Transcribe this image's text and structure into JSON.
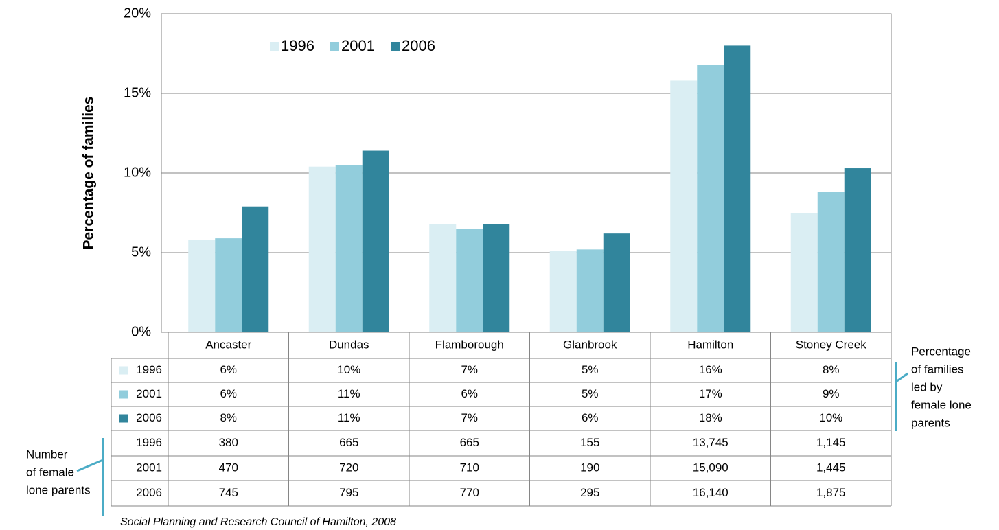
{
  "chart_data": {
    "type": "bar",
    "y_axis_label": "Percentage of families",
    "categories": [
      "Ancaster",
      "Dundas",
      "Flamborough",
      "Glanbrook",
      "Hamilton",
      "Stoney Creek"
    ],
    "series": [
      {
        "name": "1996",
        "color": "#daeef3",
        "values": [
          5.8,
          10.4,
          6.8,
          5.1,
          15.8,
          7.5
        ],
        "value_labels": [
          "6%",
          "10%",
          "7%",
          "5%",
          "16%",
          "8%"
        ]
      },
      {
        "name": "2001",
        "color": "#92cddc",
        "values": [
          5.9,
          10.5,
          6.5,
          5.2,
          16.8,
          8.8
        ],
        "value_labels": [
          "6%",
          "11%",
          "6%",
          "5%",
          "17%",
          "9%"
        ]
      },
      {
        "name": "2006",
        "color": "#31859c",
        "values": [
          7.9,
          11.4,
          6.8,
          6.2,
          18.0,
          10.3
        ],
        "value_labels": [
          "8%",
          "11%",
          "7%",
          "6%",
          "18%",
          "10%"
        ]
      }
    ],
    "ylim": [
      0,
      20
    ],
    "yticks": [
      {
        "value": 0,
        "label": "0%"
      },
      {
        "value": 5,
        "label": "5%"
      },
      {
        "value": 10,
        "label": "10%"
      },
      {
        "value": 15,
        "label": "15%"
      },
      {
        "value": 20,
        "label": "20%"
      }
    ],
    "grid": true,
    "legend": "top",
    "count_rows": [
      {
        "name": "1996",
        "values": [
          "380",
          "665",
          "665",
          "155",
          "13,745",
          "1,145"
        ]
      },
      {
        "name": "2001",
        "values": [
          "470",
          "720",
          "710",
          "190",
          "15,090",
          "1,445"
        ]
      },
      {
        "name": "2006",
        "values": [
          "745",
          "795",
          "770",
          "295",
          "16,140",
          "1,875"
        ]
      }
    ],
    "percentage_note": [
      "Percentage",
      "of families",
      "led by",
      "female lone",
      "parents"
    ],
    "count_note": [
      "Number",
      "of female",
      "lone parents"
    ],
    "source": "Social Planning and Research Council of Hamilton, 2008"
  }
}
